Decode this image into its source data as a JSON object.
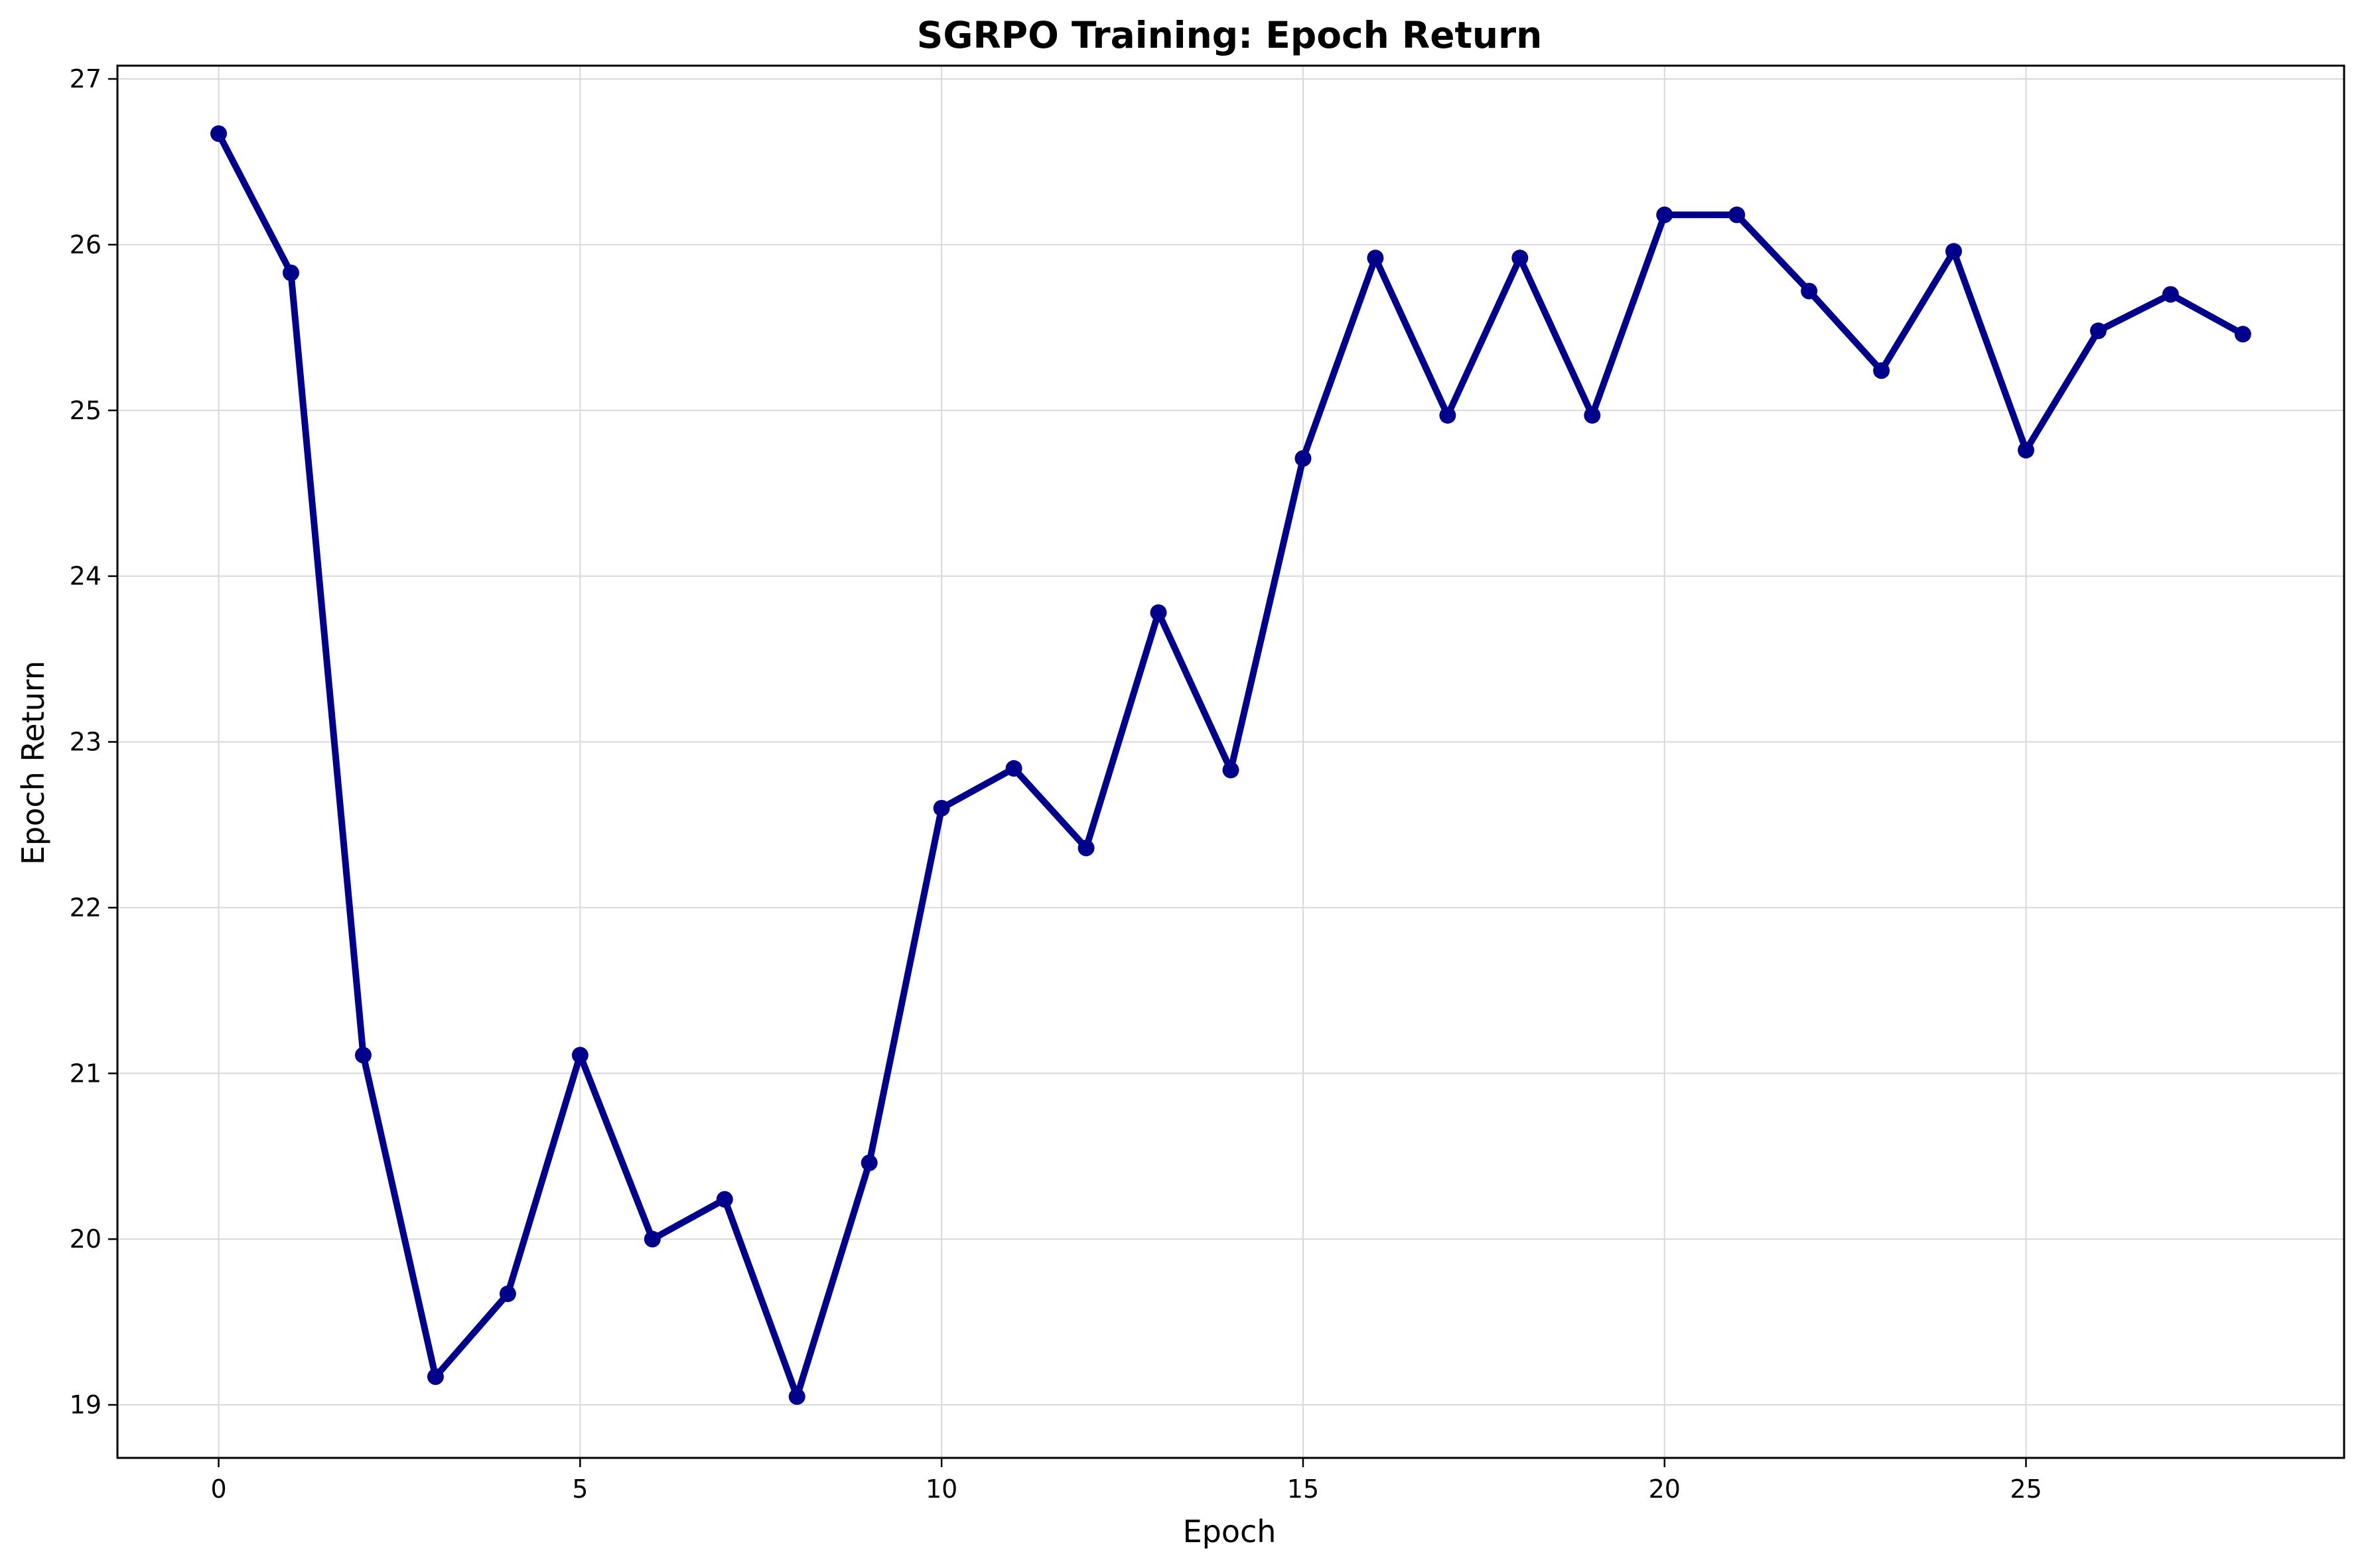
{
  "chart_data": {
    "type": "line",
    "title": "SGRPO Training: Epoch Return",
    "xlabel": "Epoch",
    "ylabel": "Epoch Return",
    "xlim": [
      -1.4,
      29.4
    ],
    "ylim": [
      18.68,
      27.08
    ],
    "xticks": [
      0,
      5,
      10,
      15,
      20,
      25
    ],
    "yticks": [
      19,
      20,
      21,
      22,
      23,
      24,
      25,
      26,
      27
    ],
    "grid": true,
    "line_color": "#00008b",
    "series": [
      {
        "x": [
          0,
          1,
          2,
          3,
          4,
          5,
          6,
          7,
          8,
          9,
          10,
          11,
          12,
          13,
          14,
          15,
          16,
          17,
          18,
          19,
          20,
          21,
          22,
          23,
          24,
          25,
          26,
          27,
          28
        ],
        "values": [
          26.67,
          25.83,
          21.11,
          19.17,
          19.67,
          21.11,
          20.0,
          20.24,
          19.05,
          20.46,
          22.6,
          22.84,
          22.36,
          23.78,
          22.83,
          24.71,
          25.92,
          24.97,
          25.92,
          24.97,
          26.18,
          26.18,
          25.72,
          25.24,
          25.96,
          24.76,
          25.48,
          25.7,
          25.46
        ]
      }
    ]
  }
}
